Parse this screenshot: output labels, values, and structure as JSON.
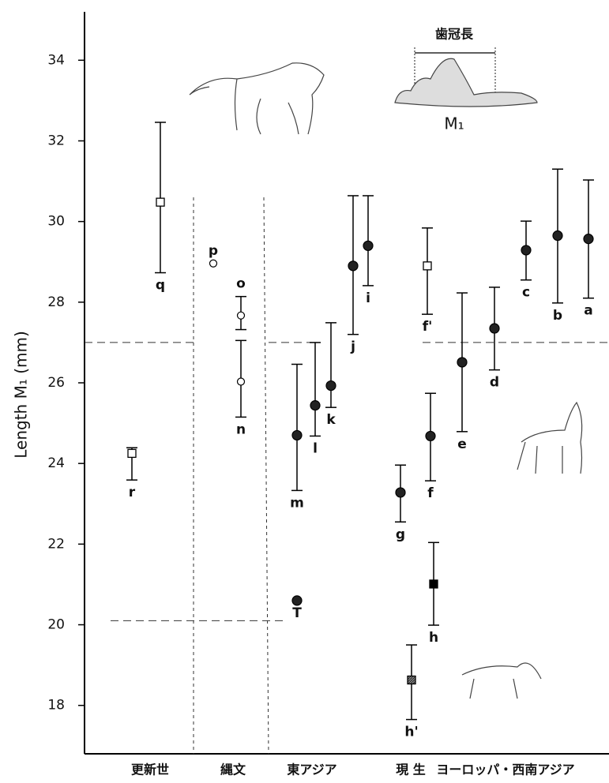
{
  "chart_data": {
    "type": "errorbar",
    "y_label": "Length M₁ (mm)",
    "ylim": [
      16.8,
      35.2
    ],
    "yticks": [
      18,
      20,
      22,
      24,
      26,
      28,
      30,
      32,
      34
    ],
    "groups": [
      "更新世",
      "縄文",
      "東アジア",
      "現 生",
      "ヨーロッパ・西南アジア"
    ],
    "annotations": [
      "歯冠長",
      "M₁"
    ],
    "reference_lines": [
      27,
      20.1
    ],
    "points": [
      {
        "label": "q",
        "marker": "open-square",
        "value": 30.48,
        "upper": 32.46,
        "lower": 28.73
      },
      {
        "label": "r",
        "marker": "open-square",
        "value": 24.25,
        "upper": 24.39,
        "lower": 23.59
      },
      {
        "label": "p",
        "marker": "open-circle",
        "value": 28.96,
        "upper": null,
        "lower": null
      },
      {
        "label": "o",
        "marker": "open-circle",
        "value": 27.67,
        "upper": 28.14,
        "lower": 27.32
      },
      {
        "label": "n",
        "marker": "open-circle",
        "value": 26.03,
        "upper": 27.05,
        "lower": 25.15
      },
      {
        "label": "m",
        "marker": "filled-circle",
        "value": 24.7,
        "upper": 26.46,
        "lower": 23.33
      },
      {
        "label": "l",
        "marker": "filled-circle",
        "value": 25.44,
        "upper": 27.0,
        "lower": 24.68
      },
      {
        "label": "k",
        "marker": "filled-circle",
        "value": 25.93,
        "upper": 27.49,
        "lower": 25.39
      },
      {
        "label": "j",
        "marker": "filled-circle",
        "value": 28.9,
        "upper": 30.64,
        "lower": 27.2
      },
      {
        "label": "i",
        "marker": "filled-circle",
        "value": 29.4,
        "upper": 30.64,
        "lower": 28.41
      },
      {
        "label": "g",
        "marker": "filled-circle",
        "value": 23.28,
        "upper": 23.96,
        "lower": 22.55
      },
      {
        "label": "f",
        "marker": "filled-circle",
        "value": 24.68,
        "upper": 25.74,
        "lower": 23.57
      },
      {
        "label": "f'",
        "marker": "open-square",
        "value": 28.9,
        "upper": 29.84,
        "lower": 27.7
      },
      {
        "label": "h",
        "marker": "filled-square",
        "value": 21.01,
        "upper": 22.04,
        "lower": 19.99
      },
      {
        "label": "h'",
        "marker": "hatched-square",
        "value": 18.63,
        "upper": 19.5,
        "lower": 17.65
      },
      {
        "label": "e",
        "marker": "filled-circle",
        "value": 26.51,
        "upper": 28.23,
        "lower": 24.79
      },
      {
        "label": "d",
        "marker": "filled-circle",
        "value": 27.35,
        "upper": 28.37,
        "lower": 26.32
      },
      {
        "label": "c",
        "marker": "filled-circle",
        "value": 29.29,
        "upper": 30.01,
        "lower": 28.55
      },
      {
        "label": "b",
        "marker": "filled-circle",
        "value": 29.65,
        "upper": 31.3,
        "lower": 27.98
      },
      {
        "label": "a",
        "marker": "filled-circle",
        "value": 29.57,
        "upper": 31.03,
        "lower": 28.1
      },
      {
        "label": "T",
        "marker": "filled-circle",
        "value": 20.6,
        "upper": null,
        "lower": null
      }
    ]
  }
}
